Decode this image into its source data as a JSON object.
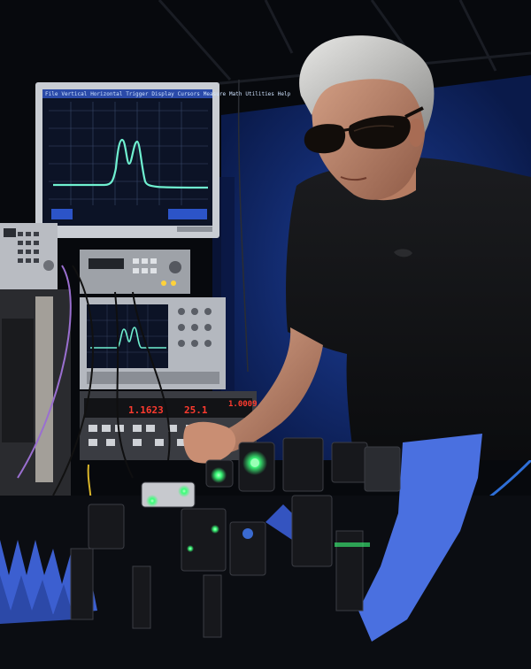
{
  "photo": {
    "subject": "scientist-with-laser-optics",
    "colors": {
      "background": "#07090d",
      "wall_blue": "#14307a",
      "screen_bg": "#0c1326",
      "trace": "#6ff0d0",
      "laser_green": "#3cff7a",
      "foam_blue": "#3c5fd0",
      "led_red": "#ff3b2f"
    }
  },
  "monitor_top": {
    "menu_items": [
      "File",
      "Vertical",
      "Horizontal",
      "Trigger",
      "Display",
      "Cursors",
      "Measure",
      "Math",
      "Utilities",
      "Help"
    ],
    "trace_type": "double-peak"
  },
  "monitor_small": {
    "trace_type": "double-peak"
  },
  "rack_displays": {
    "left_readout": "1.1623",
    "middle_readout": "25.1",
    "right_readout": "1.0009"
  }
}
